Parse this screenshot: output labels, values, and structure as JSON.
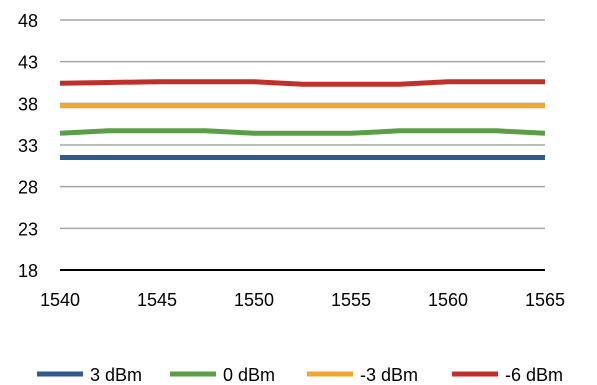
{
  "chart_data": {
    "type": "line",
    "title": "",
    "xlabel": "",
    "ylabel": "",
    "x": [
      1540,
      1542.5,
      1545,
      1547.5,
      1550,
      1552.5,
      1555,
      1557.5,
      1560,
      1562.5,
      1565
    ],
    "xticks": [
      "1540",
      "1545",
      "1550",
      "1555",
      "1560",
      "1565"
    ],
    "xtick_values": [
      1540,
      1545,
      1550,
      1555,
      1560,
      1565
    ],
    "yticks": [
      "18",
      "23",
      "28",
      "33",
      "38",
      "43",
      "48"
    ],
    "ytick_values": [
      18,
      23,
      28,
      33,
      38,
      43,
      48
    ],
    "xlim": [
      1540,
      1565
    ],
    "ylim": [
      18,
      48
    ],
    "grid": "horizontal",
    "legend_position": "bottom",
    "series": [
      {
        "name": "3 dBm",
        "color": "#2e5a8c",
        "values": [
          31.5,
          31.5,
          31.5,
          31.5,
          31.5,
          31.5,
          31.5,
          31.5,
          31.5,
          31.5,
          31.5
        ]
      },
      {
        "name": "0 dBm",
        "color": "#5a9f48",
        "values": [
          34.4,
          34.7,
          34.7,
          34.7,
          34.4,
          34.4,
          34.4,
          34.7,
          34.7,
          34.7,
          34.4
        ]
      },
      {
        "name": "-3 dBm",
        "color": "#f0a630",
        "values": [
          37.7,
          37.7,
          37.7,
          37.7,
          37.7,
          37.7,
          37.7,
          37.7,
          37.7,
          37.7,
          37.7
        ]
      },
      {
        "name": "-6 dBm",
        "color": "#c0302b",
        "values": [
          40.4,
          40.5,
          40.6,
          40.6,
          40.6,
          40.3,
          40.3,
          40.3,
          40.6,
          40.6,
          40.6
        ]
      }
    ]
  }
}
